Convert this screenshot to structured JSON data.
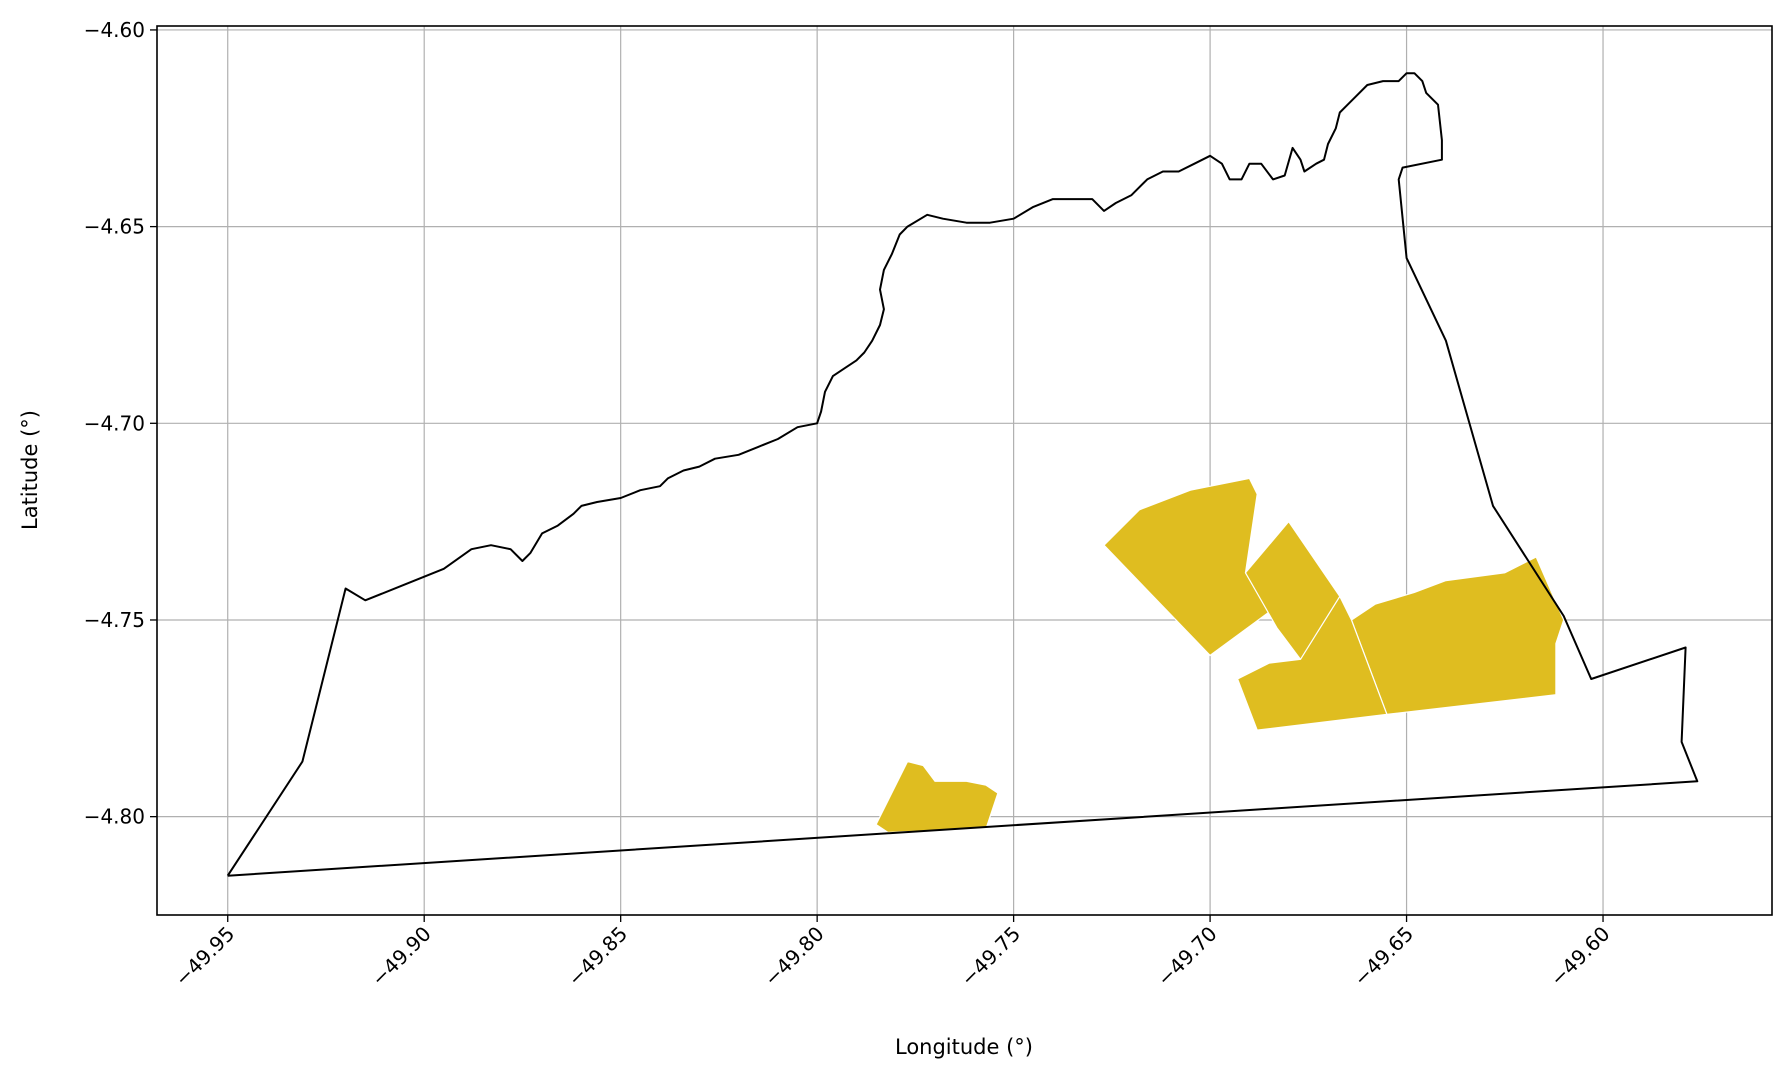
{
  "map": {
    "xlabel": "Longitude (°)",
    "ylabel": "Latitude (°)",
    "x_ticks": [
      "−49.95",
      "−49.90",
      "−49.85",
      "−49.80",
      "−49.75",
      "−49.70",
      "−49.65",
      "−49.60"
    ],
    "y_ticks": [
      "−4.60",
      "−4.65",
      "−4.70",
      "−4.75",
      "−4.80"
    ],
    "xlim": [
      -49.968,
      -49.557
    ],
    "ylim": [
      -4.825,
      -4.599
    ],
    "grid": true,
    "boundary_color": "#000000",
    "fill_color": "#dfbd20"
  },
  "chart_data": {
    "type": "map",
    "xlabel": "Longitude (°)",
    "ylabel": "Latitude (°)",
    "x_tick_values": [
      -49.95,
      -49.9,
      -49.85,
      -49.8,
      -49.75,
      -49.7,
      -49.65,
      -49.6
    ],
    "y_tick_values": [
      -4.6,
      -4.65,
      -4.7,
      -4.75,
      -4.8
    ],
    "xlim": [
      -49.968,
      -49.557
    ],
    "ylim": [
      -4.825,
      -4.599
    ],
    "grid": true,
    "boundary": {
      "color": "#000000",
      "coords": [
        [
          -49.95,
          -4.815
        ],
        [
          -49.931,
          -4.786
        ],
        [
          -49.92,
          -4.742
        ],
        [
          -49.915,
          -4.745
        ],
        [
          -49.905,
          -4.741
        ],
        [
          -49.895,
          -4.737
        ],
        [
          -49.888,
          -4.732
        ],
        [
          -49.883,
          -4.731
        ],
        [
          -49.878,
          -4.732
        ],
        [
          -49.875,
          -4.735
        ],
        [
          -49.873,
          -4.733
        ],
        [
          -49.87,
          -4.728
        ],
        [
          -49.866,
          -4.726
        ],
        [
          -49.862,
          -4.723
        ],
        [
          -49.86,
          -4.721
        ],
        [
          -49.856,
          -4.72
        ],
        [
          -49.85,
          -4.719
        ],
        [
          -49.845,
          -4.717
        ],
        [
          -49.84,
          -4.716
        ],
        [
          -49.838,
          -4.714
        ],
        [
          -49.834,
          -4.712
        ],
        [
          -49.83,
          -4.711
        ],
        [
          -49.826,
          -4.709
        ],
        [
          -49.82,
          -4.708
        ],
        [
          -49.815,
          -4.706
        ],
        [
          -49.81,
          -4.704
        ],
        [
          -49.805,
          -4.701
        ],
        [
          -49.8,
          -4.7
        ],
        [
          -49.799,
          -4.697
        ],
        [
          -49.798,
          -4.692
        ],
        [
          -49.796,
          -4.688
        ],
        [
          -49.793,
          -4.686
        ],
        [
          -49.79,
          -4.684
        ],
        [
          -49.788,
          -4.682
        ],
        [
          -49.786,
          -4.679
        ],
        [
          -49.784,
          -4.675
        ],
        [
          -49.783,
          -4.671
        ],
        [
          -49.784,
          -4.666
        ],
        [
          -49.783,
          -4.661
        ],
        [
          -49.781,
          -4.657
        ],
        [
          -49.779,
          -4.652
        ],
        [
          -49.777,
          -4.65
        ],
        [
          -49.772,
          -4.647
        ],
        [
          -49.768,
          -4.648
        ],
        [
          -49.762,
          -4.649
        ],
        [
          -49.756,
          -4.649
        ],
        [
          -49.75,
          -4.648
        ],
        [
          -49.745,
          -4.645
        ],
        [
          -49.74,
          -4.643
        ],
        [
          -49.735,
          -4.643
        ],
        [
          -49.73,
          -4.643
        ],
        [
          -49.727,
          -4.646
        ],
        [
          -49.724,
          -4.644
        ],
        [
          -49.72,
          -4.642
        ],
        [
          -49.716,
          -4.638
        ],
        [
          -49.712,
          -4.636
        ],
        [
          -49.708,
          -4.636
        ],
        [
          -49.704,
          -4.634
        ],
        [
          -49.7,
          -4.632
        ],
        [
          -49.697,
          -4.634
        ],
        [
          -49.695,
          -4.638
        ],
        [
          -49.692,
          -4.638
        ],
        [
          -49.69,
          -4.634
        ],
        [
          -49.687,
          -4.634
        ],
        [
          -49.684,
          -4.638
        ],
        [
          -49.681,
          -4.637
        ],
        [
          -49.679,
          -4.63
        ],
        [
          -49.677,
          -4.633
        ],
        [
          -49.676,
          -4.636
        ],
        [
          -49.673,
          -4.634
        ],
        [
          -49.671,
          -4.633
        ],
        [
          -49.67,
          -4.629
        ],
        [
          -49.668,
          -4.625
        ],
        [
          -49.667,
          -4.621
        ],
        [
          -49.665,
          -4.619
        ],
        [
          -49.663,
          -4.617
        ],
        [
          -49.66,
          -4.614
        ],
        [
          -49.656,
          -4.613
        ],
        [
          -49.652,
          -4.613
        ],
        [
          -49.65,
          -4.611
        ],
        [
          -49.648,
          -4.611
        ],
        [
          -49.646,
          -4.613
        ],
        [
          -49.645,
          -4.616
        ],
        [
          -49.642,
          -4.619
        ],
        [
          -49.641,
          -4.628
        ],
        [
          -49.641,
          -4.633
        ],
        [
          -49.651,
          -4.635
        ],
        [
          -49.652,
          -4.638
        ],
        [
          -49.65,
          -4.658
        ],
        [
          -49.64,
          -4.679
        ],
        [
          -49.628,
          -4.721
        ],
        [
          -49.61,
          -4.749
        ],
        [
          -49.603,
          -4.765
        ],
        [
          -49.579,
          -4.757
        ],
        [
          -49.58,
          -4.781
        ],
        [
          -49.576,
          -4.791
        ],
        [
          -49.95,
          -4.815
        ]
      ]
    },
    "fill_color": "#dfbd20",
    "areas": [
      {
        "coords": [
          [
            -49.727,
            -4.731
          ],
          [
            -49.718,
            -4.722
          ],
          [
            -49.705,
            -4.717
          ],
          [
            -49.69,
            -4.714
          ],
          [
            -49.688,
            -4.718
          ],
          [
            -49.691,
            -4.738
          ],
          [
            -49.685,
            -4.748
          ],
          [
            -49.7,
            -4.759
          ]
        ]
      },
      {
        "coords": [
          [
            -49.691,
            -4.738
          ],
          [
            -49.68,
            -4.725
          ],
          [
            -49.667,
            -4.744
          ],
          [
            -49.664,
            -4.75
          ],
          [
            -49.677,
            -4.76
          ],
          [
            -49.683,
            -4.752
          ]
        ]
      },
      {
        "coords": [
          [
            -49.664,
            -4.75
          ],
          [
            -49.658,
            -4.746
          ],
          [
            -49.648,
            -4.743
          ],
          [
            -49.64,
            -4.74
          ],
          [
            -49.625,
            -4.738
          ],
          [
            -49.617,
            -4.734
          ],
          [
            -49.61,
            -4.75
          ],
          [
            -49.612,
            -4.756
          ],
          [
            -49.612,
            -4.768
          ],
          [
            -49.612,
            -4.769
          ],
          [
            -49.655,
            -4.774
          ]
        ]
      },
      {
        "coords": [
          [
            -49.667,
            -4.744
          ],
          [
            -49.664,
            -4.75
          ],
          [
            -49.655,
            -4.774
          ],
          [
            -49.688,
            -4.778
          ],
          [
            -49.693,
            -4.765
          ],
          [
            -49.685,
            -4.761
          ],
          [
            -49.677,
            -4.76
          ]
        ]
      },
      {
        "coords": [
          [
            -49.785,
            -4.802
          ],
          [
            -49.777,
            -4.786
          ],
          [
            -49.773,
            -4.787
          ],
          [
            -49.77,
            -4.791
          ],
          [
            -49.762,
            -4.791
          ],
          [
            -49.757,
            -4.792
          ],
          [
            -49.754,
            -4.794
          ],
          [
            -49.757,
            -4.803
          ],
          [
            -49.782,
            -4.804
          ]
        ]
      }
    ]
  }
}
